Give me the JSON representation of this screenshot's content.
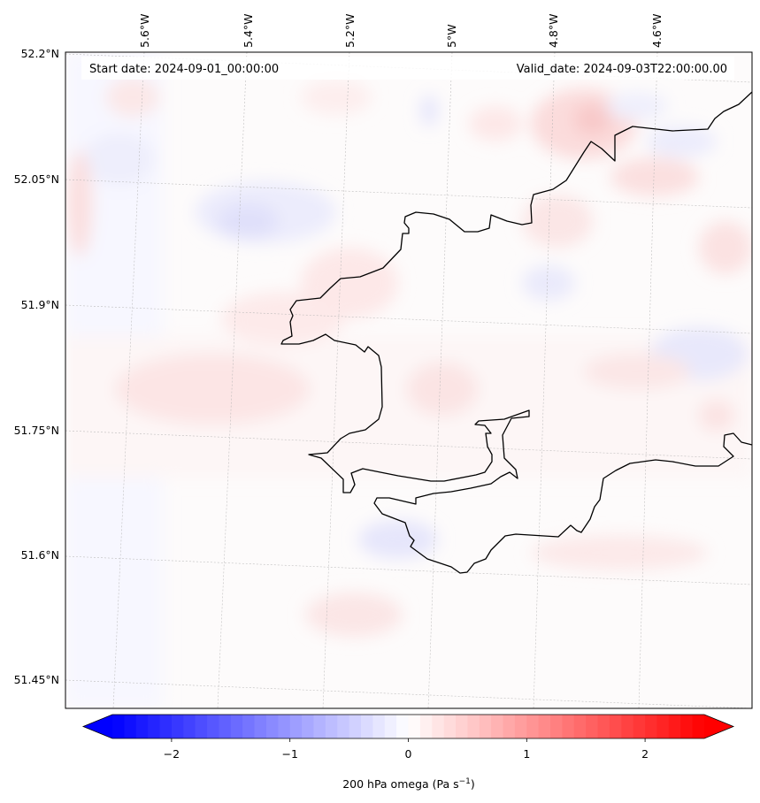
{
  "map": {
    "header": {
      "start_date": "Start date: 2024-09-01_00:00:00",
      "valid_date": "Valid_date: 2024-09-03T22:00:00.00"
    },
    "longitude_labels": [
      "5.6°W",
      "5.4°W",
      "5.2°W",
      "5°W",
      "4.8°W",
      "4.6°W"
    ],
    "latitude_labels": [
      "52.2°N",
      "52.05°N",
      "51.9°N",
      "51.75°N",
      "51.6°N",
      "51.45°N"
    ],
    "colorbar": {
      "label_main": "200 hPa omega (Pa s",
      "label_exp": "−1",
      "label_end": ")",
      "ticks": [
        "−2",
        "−1",
        "0",
        "1",
        "2"
      ],
      "tick_values": [
        -2,
        -1,
        0,
        1,
        2
      ],
      "vmin": -2.5,
      "vmax": 2.5,
      "levels": 50,
      "cmap": "bwr",
      "extend": "both"
    },
    "colors": {
      "negative": "#0000ff",
      "zero": "#ffffff",
      "positive": "#ff0000",
      "coastline": "#000000",
      "gridline": "#b0b0b0"
    }
  }
}
